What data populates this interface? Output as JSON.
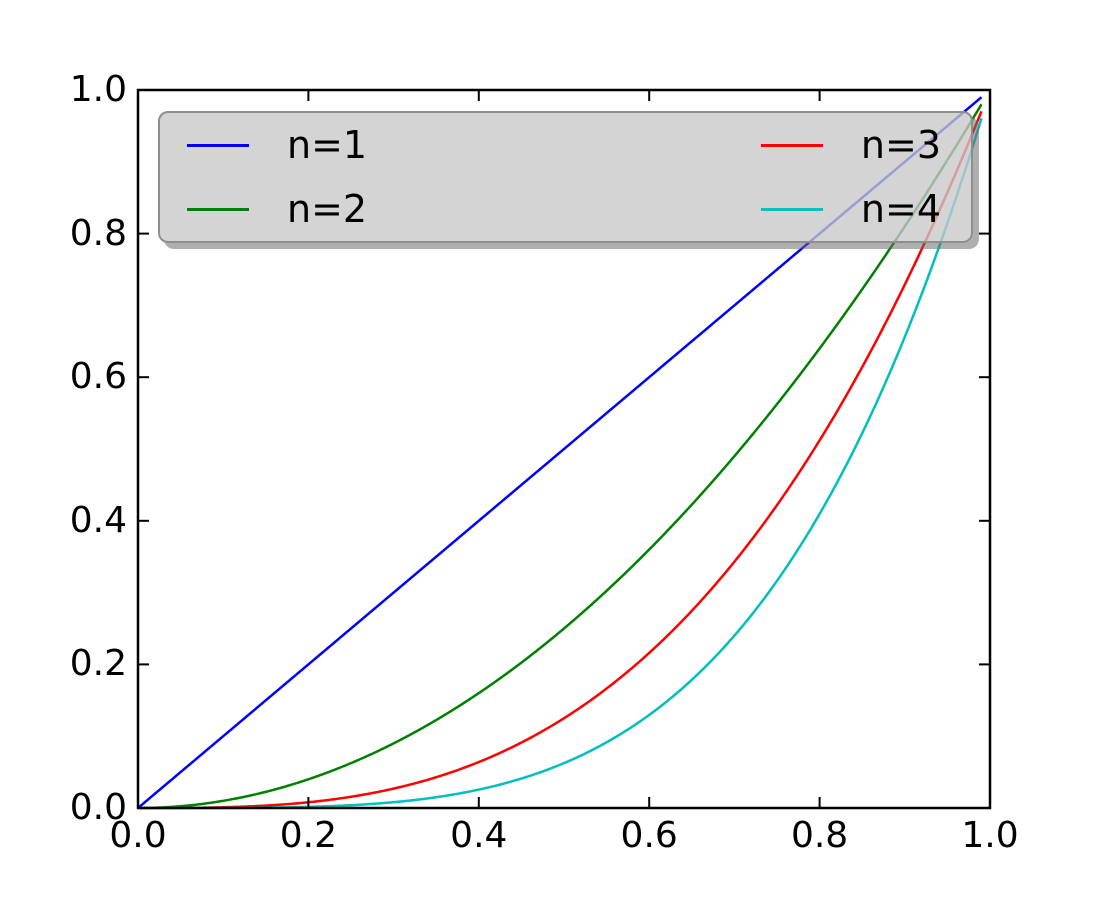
{
  "figure": {
    "background_color": "#ffffff",
    "axes_frame_color": "#000000",
    "tick_color": "#000000",
    "tick_label_color": "#000000",
    "tick_direction": "in"
  },
  "chart_data": {
    "type": "line",
    "title": "",
    "xlabel": "",
    "ylabel": "",
    "xlim": [
      0.0,
      1.0
    ],
    "ylim": [
      0.0,
      1.0
    ],
    "grid": false,
    "x_sampling": {
      "min": 0.0,
      "max": 0.99,
      "step": 0.01
    },
    "xticks": [
      "0.0",
      "0.2",
      "0.4",
      "0.6",
      "0.8",
      "1.0"
    ],
    "yticks": [
      "0.0",
      "0.2",
      "0.4",
      "0.6",
      "0.8",
      "1.0"
    ],
    "xtick_values": [
      0.0,
      0.2,
      0.4,
      0.6,
      0.8,
      1.0
    ],
    "ytick_values": [
      0.0,
      0.2,
      0.4,
      0.6,
      0.8,
      1.0
    ],
    "series": [
      {
        "name": "n=1",
        "color": "#0000ff",
        "exponent": 1,
        "formula": "y = x^1",
        "key_points": [
          [
            0,
            0
          ],
          [
            0.1,
            0.1
          ],
          [
            0.2,
            0.2
          ],
          [
            0.3,
            0.3
          ],
          [
            0.4,
            0.4
          ],
          [
            0.5,
            0.5
          ],
          [
            0.6,
            0.6
          ],
          [
            0.7,
            0.7
          ],
          [
            0.8,
            0.8
          ],
          [
            0.9,
            0.9
          ],
          [
            0.99,
            0.99
          ]
        ]
      },
      {
        "name": "n=2",
        "color": "#008000",
        "exponent": 2,
        "formula": "y = x^2",
        "key_points": [
          [
            0,
            0
          ],
          [
            0.1,
            0.01
          ],
          [
            0.2,
            0.04
          ],
          [
            0.3,
            0.09
          ],
          [
            0.4,
            0.16
          ],
          [
            0.5,
            0.25
          ],
          [
            0.6,
            0.36
          ],
          [
            0.7,
            0.49
          ],
          [
            0.8,
            0.64
          ],
          [
            0.9,
            0.81
          ],
          [
            0.99,
            0.9801
          ]
        ]
      },
      {
        "name": "n=3",
        "color": "#ff0000",
        "exponent": 3,
        "formula": "y = x^3",
        "key_points": [
          [
            0,
            0
          ],
          [
            0.1,
            0.001
          ],
          [
            0.2,
            0.008
          ],
          [
            0.3,
            0.027
          ],
          [
            0.4,
            0.064
          ],
          [
            0.5,
            0.125
          ],
          [
            0.6,
            0.216
          ],
          [
            0.7,
            0.343
          ],
          [
            0.8,
            0.512
          ],
          [
            0.9,
            0.729
          ],
          [
            0.99,
            0.9703
          ]
        ]
      },
      {
        "name": "n=4",
        "color": "#00bfbf",
        "exponent": 4,
        "formula": "y = x^4",
        "key_points": [
          [
            0,
            0
          ],
          [
            0.1,
            0.0001
          ],
          [
            0.2,
            0.0016
          ],
          [
            0.3,
            0.0081
          ],
          [
            0.4,
            0.0256
          ],
          [
            0.5,
            0.0625
          ],
          [
            0.6,
            0.1296
          ],
          [
            0.7,
            0.2401
          ],
          [
            0.8,
            0.4096
          ],
          [
            0.9,
            0.6561
          ],
          [
            0.99,
            0.9606
          ]
        ]
      }
    ],
    "legend": {
      "location": "upper, spanning plot width",
      "columns": 2,
      "fancybox": true,
      "shadow": true,
      "face_color": "#c8c8c8",
      "face_alpha": 0.78,
      "entries": [
        {
          "label": "n=1",
          "color": "#0000ff"
        },
        {
          "label": "n=2",
          "color": "#008000"
        },
        {
          "label": "n=3",
          "color": "#ff0000"
        },
        {
          "label": "n=4",
          "color": "#00bfbf"
        }
      ]
    }
  }
}
